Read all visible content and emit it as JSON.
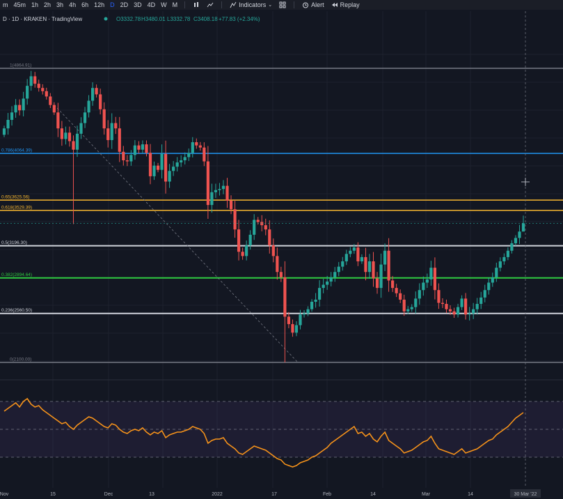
{
  "toolbar": {
    "timeframes": [
      "m",
      "45m",
      "1h",
      "2h",
      "3h",
      "4h",
      "6h",
      "12h",
      "D",
      "2D",
      "3D",
      "4D",
      "W",
      "M"
    ],
    "active_timeframe": "D",
    "indicators_label": "Indicators",
    "alert_label": "Alert",
    "replay_label": "Replay"
  },
  "header": {
    "symbol": "D · 1D · KRAKEN · TradingView",
    "open": "O3332.78",
    "high": "H3480.01",
    "low": "L3332.78",
    "close": "C3408.18",
    "change": "+77.83 (+2.34%)"
  },
  "colors": {
    "background": "#131722",
    "up": "#26a69a",
    "down": "#ef5350",
    "rsi": "#f7931a",
    "fib_1": "#787b86",
    "fib_786": "#2196f3",
    "fib_65": "#f7b731",
    "fib_618": "#f7b731",
    "fib_5": "#d1d4dc",
    "fib_382": "#2ecc40",
    "fib_236": "#d1d4dc",
    "fib_0": "#787b86"
  },
  "chart_data": {
    "type": "candlestick",
    "fib_levels": [
      {
        "label": "1(4864.91)",
        "value": 4864.91
      },
      {
        "label": "0.786(4064.39)",
        "value": 4064.39
      },
      {
        "label": "0.65(3625.56)",
        "value": 3625.56
      },
      {
        "label": "0.618(3529.39)",
        "value": 3529.39
      },
      {
        "label": "0.5(3196.30)",
        "value": 3196.3
      },
      {
        "label": "0.382(2894.64)",
        "value": 2894.64
      },
      {
        "label": "0.236(2560.50)",
        "value": 2560.5
      },
      {
        "label": "0(2100.00)",
        "value": 2100.0
      }
    ],
    "x_ticks": [
      "Nov",
      "15",
      "Dec",
      "13",
      "2022",
      "17",
      "Feb",
      "14",
      "Mar",
      "14",
      "30 Mar '22"
    ],
    "close": [
      4300,
      4380,
      4450,
      4520,
      4470,
      4580,
      4700,
      4790,
      4720,
      4680,
      4650,
      4600,
      4520,
      4450,
      4300,
      4200,
      4260,
      4180,
      4100,
      4250,
      4350,
      4450,
      4560,
      4680,
      4620,
      4480,
      4300,
      4190,
      4350,
      4300,
      4080,
      4000,
      3990,
      4050,
      4140,
      4100,
      4150,
      4070,
      3850,
      3950,
      3910,
      4060,
      3800,
      3900,
      3940,
      3980,
      4000,
      4030,
      4070,
      4170,
      4140,
      4120,
      3990,
      3580,
      3700,
      3720,
      3730,
      3760,
      3620,
      3540,
      3350,
      3140,
      3100,
      3200,
      3300,
      3440,
      3420,
      3390,
      3350,
      3200,
      3100,
      2950,
      2900,
      2530,
      2460,
      2380,
      2450,
      2550,
      2560,
      2600,
      2670,
      2690,
      2800,
      2830,
      2860,
      2900,
      2950,
      3000,
      3050,
      3120,
      3150,
      3180,
      3050,
      3090,
      2950,
      3050,
      2890,
      2800,
      3020,
      3150,
      2870,
      2800,
      2750,
      2690,
      2580,
      2600,
      2620,
      2700,
      2780,
      2850,
      2880,
      2990,
      2780,
      2660,
      2650,
      2600,
      2580,
      2550,
      2620,
      2700,
      2550,
      2560,
      2600,
      2650,
      2710,
      2780,
      2850,
      2900,
      2990,
      3050,
      3090,
      3150,
      3220,
      3270,
      3330,
      3408.18
    ]
  },
  "rsi": {
    "values": [
      63,
      65,
      67,
      69,
      66,
      70,
      72,
      68,
      66,
      67,
      64,
      62,
      60,
      58,
      56,
      54,
      55,
      52,
      50,
      53,
      55,
      57,
      59,
      58,
      56,
      54,
      52,
      51,
      54,
      53,
      50,
      48,
      47,
      49,
      50,
      49,
      51,
      48,
      46,
      48,
      47,
      49,
      44,
      46,
      47,
      48,
      48,
      49,
      50,
      52,
      51,
      50,
      47,
      40,
      42,
      43,
      43,
      44,
      40,
      38,
      36,
      33,
      32,
      34,
      36,
      38,
      37,
      36,
      35,
      33,
      31,
      29,
      28,
      25,
      24,
      23,
      24,
      26,
      27,
      28,
      30,
      31,
      33,
      35,
      37,
      40,
      42,
      44,
      46,
      48,
      50,
      52,
      47,
      48,
      45,
      47,
      43,
      41,
      45,
      48,
      42,
      40,
      38,
      36,
      33,
      34,
      35,
      37,
      39,
      41,
      42,
      45,
      40,
      36,
      35,
      34,
      33,
      32,
      34,
      36,
      33,
      34,
      35,
      36,
      38,
      40,
      42,
      43,
      46,
      48,
      50,
      52,
      55,
      58,
      60,
      62
    ]
  }
}
